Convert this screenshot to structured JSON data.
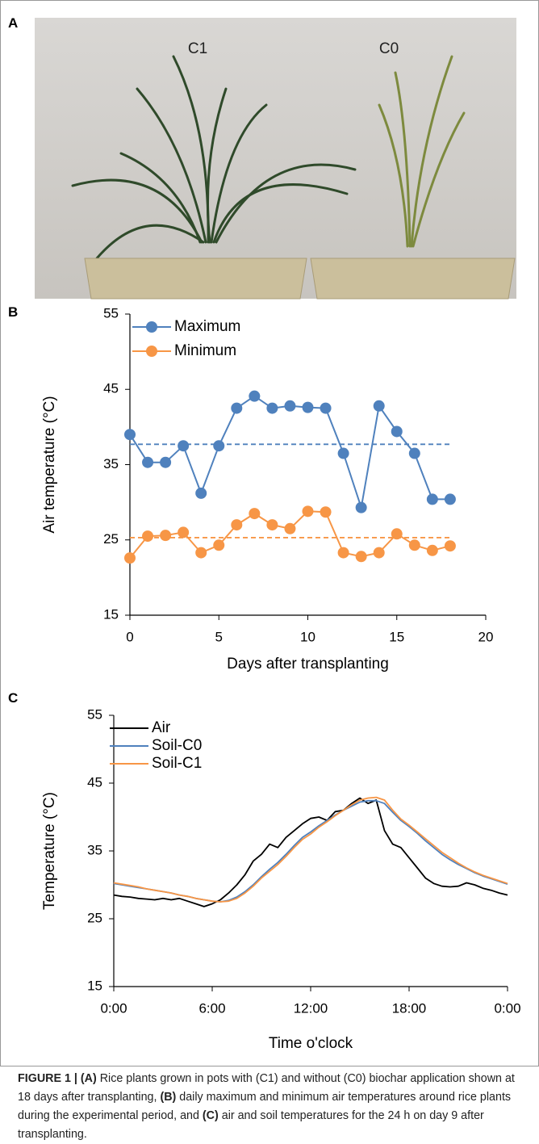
{
  "figure": {
    "panels": [
      "A",
      "B",
      "C"
    ],
    "photo_labels": [
      "C1",
      "C0"
    ],
    "caption": [
      {
        "text": "FIGURE 1 | ",
        "bold": true
      },
      {
        "text": "(A)",
        "bold": true
      },
      {
        "text": " Rice plants grown in pots with (C1) and without (C0) biochar application shown at 18 days after transplanting, ",
        "bold": false
      },
      {
        "text": "(B)",
        "bold": true
      },
      {
        "text": " daily maximum and minimum air temperatures around rice plants during the experimental period, and ",
        "bold": false
      },
      {
        "text": "(C)",
        "bold": true
      },
      {
        "text": " air and soil temperatures for the 24 h on day 9 after transplanting.",
        "bold": false
      }
    ]
  },
  "chart_data": [
    {
      "type": "line",
      "markers": true,
      "ylabel": "Air temperature (°C)",
      "xlabel": "Days after transplanting",
      "x": [
        0,
        1,
        2,
        3,
        4,
        5,
        6,
        7,
        8,
        9,
        10,
        11,
        12,
        13,
        14,
        15,
        16,
        17,
        18
      ],
      "series": [
        {
          "name": "Maximum",
          "color": "#4f81bd",
          "mean": 37.7,
          "values": [
            39,
            35.3,
            35.3,
            37.5,
            31.2,
            37.5,
            42.5,
            44.1,
            42.5,
            42.8,
            42.6,
            42.5,
            36.5,
            29.3,
            42.8,
            39.4,
            36.5,
            30.4,
            30.4
          ]
        },
        {
          "name": "Minimum",
          "color": "#f79646",
          "mean": 25.3,
          "values": [
            22.6,
            25.5,
            25.6,
            26,
            23.3,
            24.3,
            27,
            28.5,
            27,
            26.5,
            28.8,
            28.7,
            23.3,
            22.8,
            23.3,
            25.8,
            24.3,
            23.6,
            24.2
          ]
        }
      ],
      "xlim": [
        0,
        20
      ],
      "xticks": [
        0,
        5,
        10,
        15,
        20
      ],
      "ylim": [
        15,
        55
      ],
      "yticks": [
        15,
        25,
        35,
        45,
        55
      ]
    },
    {
      "type": "line",
      "markers": false,
      "ylabel": "Temperature (°C)",
      "xlabel": "Time o'clock",
      "x": [
        0,
        0.5,
        1,
        1.5,
        2,
        2.5,
        3,
        3.5,
        4,
        4.5,
        5,
        5.5,
        6,
        6.5,
        7,
        7.5,
        8,
        8.5,
        9,
        9.5,
        10,
        10.5,
        11,
        11.5,
        12,
        12.5,
        13,
        13.5,
        14,
        14.5,
        15,
        15.5,
        16,
        16.5,
        17,
        17.5,
        18,
        18.5,
        19,
        19.5,
        20,
        20.5,
        21,
        21.5,
        22,
        22.5,
        23,
        23.5,
        24
      ],
      "series": [
        {
          "name": "Air",
          "color": "#000000",
          "values": [
            28.5,
            28.3,
            28.2,
            28,
            27.9,
            27.8,
            28,
            27.8,
            28,
            27.6,
            27.2,
            26.8,
            27.2,
            27.8,
            28.8,
            30,
            31.5,
            33.5,
            34.5,
            36,
            35.5,
            37,
            38,
            39,
            39.8,
            40,
            39.5,
            40.8,
            41,
            42,
            42.8,
            42,
            42.5,
            38,
            36,
            35.5,
            34,
            32.5,
            31,
            30.2,
            29.8,
            29.7,
            29.8,
            30.3,
            30,
            29.5,
            29.2,
            28.8,
            28.5
          ]
        },
        {
          "name": "Soil-C0",
          "color": "#4f81bd",
          "values": [
            30.2,
            30,
            29.8,
            29.6,
            29.4,
            29.2,
            29,
            28.8,
            28.5,
            28.3,
            28,
            27.8,
            27.6,
            27.5,
            27.7,
            28.2,
            29,
            30,
            31.2,
            32.3,
            33.3,
            34.5,
            35.8,
            37,
            37.8,
            38.7,
            39.5,
            40.3,
            41,
            41.6,
            42.2,
            42.4,
            42.4,
            42,
            40.7,
            39.5,
            38.6,
            37.6,
            36.5,
            35.5,
            34.5,
            33.7,
            33,
            32.4,
            31.8,
            31.3,
            30.9,
            30.5,
            30.1
          ]
        },
        {
          "name": "Soil-C1",
          "color": "#f79646",
          "values": [
            30.3,
            30.1,
            29.9,
            29.7,
            29.4,
            29.2,
            29,
            28.8,
            28.5,
            28.3,
            28,
            27.8,
            27.6,
            27.5,
            27.6,
            28,
            28.8,
            29.8,
            31,
            32,
            33,
            34.2,
            35.5,
            36.7,
            37.5,
            38.5,
            39.3,
            40.2,
            41,
            41.8,
            42.5,
            42.8,
            42.9,
            42.5,
            41,
            39.7,
            38.8,
            37.8,
            36.8,
            35.8,
            34.8,
            34,
            33.2,
            32.5,
            31.9,
            31.4,
            31,
            30.6,
            30.2
          ]
        }
      ],
      "xlim": [
        0,
        24
      ],
      "xticks": [
        {
          "value": 0,
          "label": "0:00"
        },
        {
          "value": 6,
          "label": "6:00"
        },
        {
          "value": 12,
          "label": "12:00"
        },
        {
          "value": 18,
          "label": "18:00"
        },
        {
          "value": 24,
          "label": "0:00"
        }
      ],
      "ylim": [
        15,
        55
      ],
      "yticks": [
        15,
        25,
        35,
        45,
        55
      ]
    }
  ]
}
